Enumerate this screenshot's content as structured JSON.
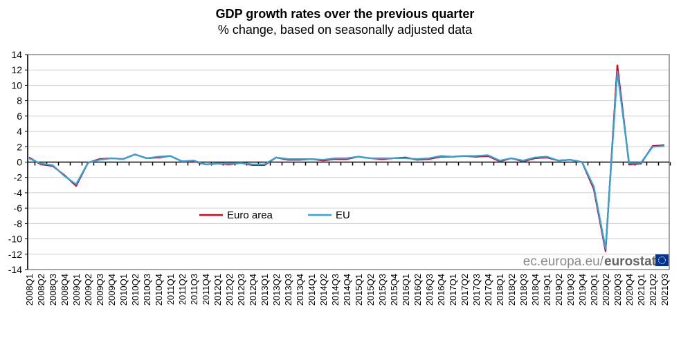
{
  "chart_data": {
    "type": "line",
    "title": "GDP growth rates over the previous quarter",
    "subtitle": "% change, based on seasonally adjusted data",
    "xlabel": "",
    "ylabel": "",
    "ylim": [
      -14,
      14
    ],
    "yticks": [
      14,
      12,
      10,
      8,
      6,
      4,
      2,
      0,
      -2,
      -4,
      -6,
      -8,
      -10,
      -12,
      -14
    ],
    "grid": true,
    "legend_placement": "center-left",
    "categories": [
      "2008Q1",
      "2008Q2",
      "2008Q3",
      "2008Q4",
      "2009Q1",
      "2009Q2",
      "2009Q3",
      "2009Q4",
      "2010Q1",
      "2010Q2",
      "2010Q3",
      "2010Q4",
      "2011Q1",
      "2011Q2",
      "2011Q3",
      "2011Q4",
      "2012Q1",
      "2012Q2",
      "2012Q3",
      "2012Q4",
      "2013Q1",
      "2013Q2",
      "2013Q3",
      "2013Q4",
      "2014Q1",
      "2014Q2",
      "2014Q3",
      "2014Q4",
      "2015Q1",
      "2015Q2",
      "2015Q3",
      "2015Q4",
      "2016Q1",
      "2016Q2",
      "2016Q3",
      "2016Q4",
      "2017Q1",
      "2017Q2",
      "2017Q3",
      "2017Q4",
      "2018Q1",
      "2018Q2",
      "2018Q3",
      "2018Q4",
      "2019Q1",
      "2019Q2",
      "2019Q3",
      "2019Q4",
      "2020Q1",
      "2020Q2",
      "2020Q3",
      "2020Q4",
      "2021Q1",
      "2021Q2",
      "2021Q3"
    ],
    "series": [
      {
        "name": "Euro area",
        "color": "#e2001a",
        "values": [
          0.6,
          -0.3,
          -0.5,
          -1.7,
          -3.1,
          -0.1,
          0.4,
          0.5,
          0.4,
          1.0,
          0.5,
          0.6,
          0.8,
          0.1,
          0.1,
          -0.3,
          -0.2,
          -0.3,
          -0.1,
          -0.4,
          -0.4,
          0.6,
          0.3,
          0.3,
          0.4,
          0.2,
          0.4,
          0.4,
          0.7,
          0.5,
          0.4,
          0.5,
          0.6,
          0.3,
          0.4,
          0.7,
          0.7,
          0.8,
          0.7,
          0.8,
          0.1,
          0.5,
          0.1,
          0.5,
          0.6,
          0.2,
          0.3,
          0.0,
          -3.5,
          -11.6,
          12.6,
          -0.3,
          -0.2,
          2.1,
          2.2
        ]
      },
      {
        "name": "EU",
        "color": "#28a8dc",
        "values": [
          0.5,
          -0.2,
          -0.4,
          -1.8,
          -2.9,
          -0.1,
          0.3,
          0.5,
          0.4,
          1.0,
          0.5,
          0.7,
          0.8,
          0.1,
          0.2,
          -0.3,
          -0.2,
          -0.2,
          -0.1,
          -0.3,
          -0.3,
          0.6,
          0.4,
          0.4,
          0.4,
          0.3,
          0.5,
          0.5,
          0.7,
          0.5,
          0.5,
          0.5,
          0.5,
          0.4,
          0.5,
          0.8,
          0.7,
          0.8,
          0.8,
          0.9,
          0.2,
          0.5,
          0.2,
          0.6,
          0.7,
          0.2,
          0.3,
          0.0,
          -3.2,
          -11.3,
          11.8,
          -0.1,
          -0.1,
          2.0,
          2.1
        ]
      }
    ]
  },
  "watermark": {
    "site": "ec.europa.eu/",
    "brand": "eurostat"
  }
}
